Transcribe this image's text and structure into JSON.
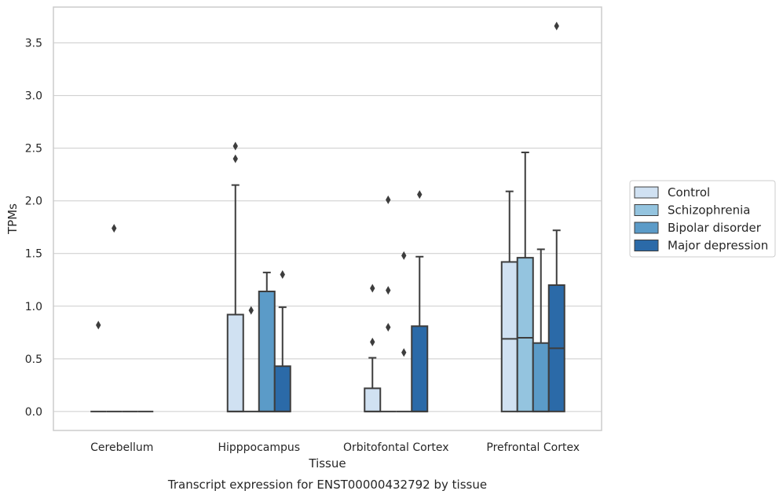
{
  "chart_data": {
    "type": "box",
    "title": "Transcript expression for ENST00000432792 by tissue",
    "xlabel": "Tissue",
    "ylabel": "TPMs",
    "ylim": [
      -0.18,
      3.84
    ],
    "yticks": [
      "0.0",
      "0.5",
      "1.0",
      "1.5",
      "2.0",
      "2.5",
      "3.0",
      "3.5"
    ],
    "grid": true,
    "legend_position": "right",
    "categories": [
      "Cerebellum",
      "Hipppocampus",
      "Orbitofontal Cortex",
      "Prefrontal Cortex"
    ],
    "series": [
      {
        "name": "Control",
        "color": "#d0e1f2",
        "boxes": [
          {
            "q1": 0,
            "median": 0,
            "q3": 0,
            "whislo": 0,
            "whishi": 0,
            "fliers": [
              0.82
            ]
          },
          {
            "q1": 0,
            "median": 0,
            "q3": 0.92,
            "whislo": 0,
            "whishi": 2.15,
            "fliers": [
              2.4,
              2.52
            ]
          },
          {
            "q1": 0,
            "median": 0,
            "q3": 0.22,
            "whislo": 0,
            "whishi": 0.51,
            "fliers": [
              0.66,
              1.17
            ]
          },
          {
            "q1": 0,
            "median": 0.69,
            "q3": 1.42,
            "whislo": 0,
            "whishi": 2.09,
            "fliers": []
          }
        ]
      },
      {
        "name": "Schizophrenia",
        "color": "#94c4df",
        "boxes": [
          {
            "q1": 0,
            "median": 0,
            "q3": 0,
            "whislo": 0,
            "whishi": 0,
            "fliers": [
              1.74
            ]
          },
          {
            "q1": 0,
            "median": 0,
            "q3": 0,
            "whislo": 0,
            "whishi": 0,
            "fliers": [
              0.96
            ]
          },
          {
            "q1": 0,
            "median": 0,
            "q3": 0,
            "whislo": 0,
            "whishi": 0,
            "fliers": [
              0.8,
              1.15,
              2.01
            ]
          },
          {
            "q1": 0,
            "median": 0.7,
            "q3": 1.46,
            "whislo": 0,
            "whishi": 2.46,
            "fliers": []
          }
        ]
      },
      {
        "name": "Bipolar disorder",
        "color": "#5b9bc8",
        "boxes": [
          {
            "q1": 0,
            "median": 0,
            "q3": 0,
            "whislo": 0,
            "whishi": 0,
            "fliers": []
          },
          {
            "q1": 0,
            "median": 0,
            "q3": 1.14,
            "whislo": 0,
            "whishi": 1.32,
            "fliers": []
          },
          {
            "q1": 0,
            "median": 0,
            "q3": 0,
            "whislo": 0,
            "whishi": 0,
            "fliers": [
              0.56,
              1.48
            ]
          },
          {
            "q1": 0,
            "median": 0,
            "q3": 0.65,
            "whislo": 0,
            "whishi": 1.54,
            "fliers": []
          }
        ]
      },
      {
        "name": "Major depression",
        "color": "#2b6aa8",
        "boxes": [
          {
            "q1": 0,
            "median": 0,
            "q3": 0,
            "whislo": 0,
            "whishi": 0,
            "fliers": []
          },
          {
            "q1": 0,
            "median": 0,
            "q3": 0.43,
            "whislo": 0,
            "whishi": 0.99,
            "fliers": [
              1.3
            ]
          },
          {
            "q1": 0,
            "median": 0,
            "q3": 0.81,
            "whislo": 0,
            "whishi": 1.47,
            "fliers": [
              2.06
            ]
          },
          {
            "q1": 0,
            "median": 0.6,
            "q3": 1.2,
            "whislo": 0,
            "whishi": 1.72,
            "fliers": [
              3.66
            ]
          }
        ]
      }
    ]
  }
}
